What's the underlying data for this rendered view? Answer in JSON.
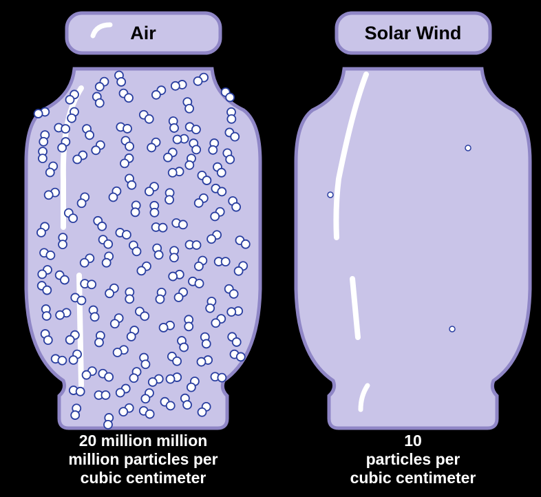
{
  "jars": [
    {
      "label": "Air",
      "caption": [
        "20 million million",
        "million particles per",
        "cubic centimeter"
      ]
    },
    {
      "label": "Solar Wind",
      "caption": [
        "10",
        "particles per",
        "cubic centimeter"
      ]
    }
  ]
}
